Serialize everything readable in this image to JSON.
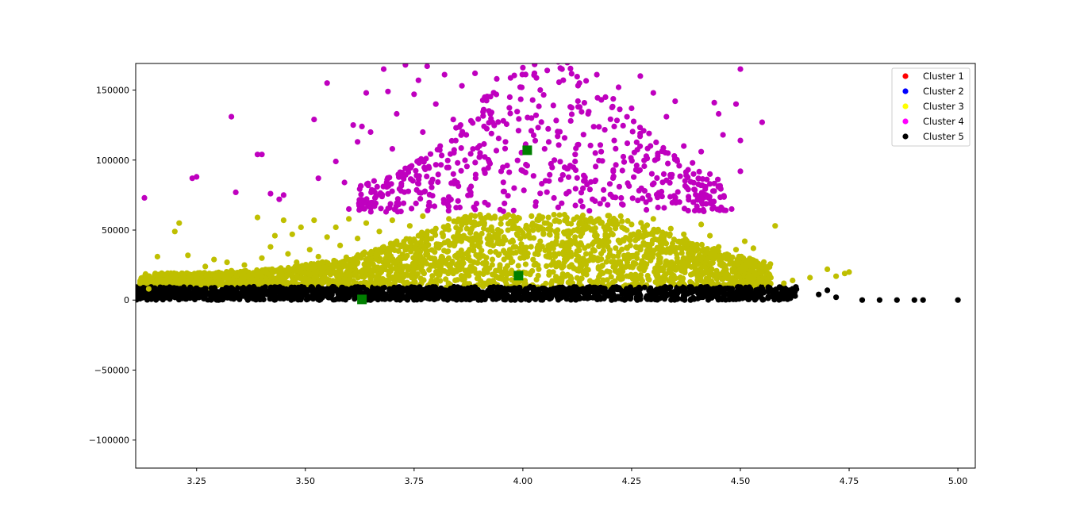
{
  "chart_data": {
    "type": "scatter",
    "title": "",
    "xlabel": "",
    "ylabel": "",
    "xlim": [
      3.11,
      5.04
    ],
    "ylim": [
      -120000,
      169000
    ],
    "x_ticks": [
      3.25,
      3.5,
      3.75,
      4.0,
      4.25,
      4.5,
      4.75,
      5.0
    ],
    "x_tick_labels": [
      "3.25",
      "3.50",
      "3.75",
      "4.00",
      "4.25",
      "4.50",
      "4.75",
      "5.00"
    ],
    "y_ticks": [
      150000,
      100000,
      50000,
      0,
      -50000,
      -100000
    ],
    "y_tick_labels": [
      "150000",
      "100000",
      "50000",
      "0",
      "−50000",
      "−100000"
    ],
    "legend_placement": "top-right",
    "grid": false,
    "series": [
      {
        "name": "Cluster 1",
        "legend_color": "#ff0000",
        "color": "#ff0000",
        "points": []
      },
      {
        "name": "Cluster 2",
        "legend_color": "#0000ff",
        "color": "#0000ff",
        "points": []
      },
      {
        "name": "Cluster 3",
        "legend_color": "#ffff00",
        "color": "#bfbf00",
        "points": [
          [
            3.12,
            12000
          ],
          [
            3.14,
            8000
          ],
          [
            3.16,
            31000
          ],
          [
            3.18,
            13000
          ],
          [
            3.2,
            49000
          ],
          [
            3.21,
            55000
          ],
          [
            3.22,
            14000
          ],
          [
            3.23,
            32000
          ],
          [
            3.25,
            18000
          ],
          [
            3.26,
            11000
          ],
          [
            3.27,
            24000
          ],
          [
            3.29,
            29000
          ],
          [
            3.3,
            16000
          ],
          [
            3.32,
            27000
          ],
          [
            3.33,
            21000
          ],
          [
            3.35,
            12000
          ],
          [
            3.36,
            25000
          ],
          [
            3.38,
            18000
          ],
          [
            3.39,
            59000
          ],
          [
            3.4,
            30000
          ],
          [
            3.41,
            14000
          ],
          [
            3.42,
            38000
          ],
          [
            3.43,
            46000
          ],
          [
            3.44,
            22000
          ],
          [
            3.45,
            57000
          ],
          [
            3.46,
            33000
          ],
          [
            3.47,
            47000
          ],
          [
            3.48,
            27000
          ],
          [
            3.49,
            52000
          ],
          [
            3.5,
            19000
          ],
          [
            3.51,
            36000
          ],
          [
            3.52,
            57000
          ],
          [
            3.53,
            31000
          ],
          [
            3.54,
            13000
          ],
          [
            3.55,
            45000
          ],
          [
            3.56,
            24000
          ],
          [
            3.57,
            52000
          ],
          [
            3.58,
            39000
          ],
          [
            3.59,
            15000
          ],
          [
            3.6,
            58000
          ],
          [
            3.61,
            27000
          ],
          [
            3.62,
            44000
          ],
          [
            3.63,
            20000
          ],
          [
            3.64,
            55000
          ],
          [
            3.65,
            33000
          ],
          [
            3.66,
            12000
          ],
          [
            3.67,
            49000
          ],
          [
            3.68,
            38000
          ],
          [
            3.69,
            25000
          ],
          [
            3.7,
            57000
          ],
          [
            3.71,
            42000
          ],
          [
            3.72,
            17000
          ],
          [
            3.73,
            30000
          ],
          [
            3.74,
            53000
          ],
          [
            3.75,
            22000
          ],
          [
            3.76,
            46000
          ],
          [
            3.77,
            60000
          ],
          [
            3.78,
            35000
          ],
          [
            3.79,
            14000
          ],
          [
            3.8,
            51000
          ],
          [
            3.81,
            28000
          ],
          [
            3.82,
            41000
          ],
          [
            3.83,
            58000
          ],
          [
            3.84,
            19000
          ],
          [
            3.85,
            47000
          ],
          [
            3.86,
            33000
          ],
          [
            3.87,
            55000
          ],
          [
            3.88,
            24000
          ],
          [
            3.89,
            60000
          ],
          [
            3.9,
            38000
          ],
          [
            3.91,
            12000
          ],
          [
            3.92,
            50000
          ],
          [
            3.93,
            29000
          ],
          [
            3.94,
            44000
          ],
          [
            3.95,
            58000
          ],
          [
            3.96,
            21000
          ],
          [
            3.97,
            36000
          ],
          [
            3.98,
            53000
          ],
          [
            3.99,
            15000
          ],
          [
            4.0,
            48000
          ],
          [
            4.01,
            31000
          ],
          [
            4.02,
            60000
          ],
          [
            4.03,
            26000
          ],
          [
            4.04,
            42000
          ],
          [
            4.05,
            55000
          ],
          [
            4.06,
            18000
          ],
          [
            4.07,
            37000
          ],
          [
            4.08,
            50000
          ],
          [
            4.09,
            23000
          ],
          [
            4.1,
            59000
          ],
          [
            4.11,
            34000
          ],
          [
            4.12,
            45000
          ],
          [
            4.13,
            13000
          ],
          [
            4.14,
            52000
          ],
          [
            4.15,
            28000
          ],
          [
            4.16,
            40000
          ],
          [
            4.17,
            57000
          ],
          [
            4.18,
            20000
          ],
          [
            4.19,
            47000
          ],
          [
            4.2,
            33000
          ],
          [
            4.21,
            56000
          ],
          [
            4.22,
            16000
          ],
          [
            4.23,
            43000
          ],
          [
            4.24,
            27000
          ],
          [
            4.25,
            54000
          ],
          [
            4.26,
            38000
          ],
          [
            4.27,
            22000
          ],
          [
            4.28,
            49000
          ],
          [
            4.29,
            31000
          ],
          [
            4.3,
            58000
          ],
          [
            4.31,
            18000
          ],
          [
            4.32,
            44000
          ],
          [
            4.33,
            26000
          ],
          [
            4.34,
            51000
          ],
          [
            4.35,
            35000
          ],
          [
            4.36,
            12000
          ],
          [
            4.37,
            47000
          ],
          [
            4.38,
            29000
          ],
          [
            4.39,
            40000
          ],
          [
            4.4,
            21000
          ],
          [
            4.41,
            54000
          ],
          [
            4.42,
            33000
          ],
          [
            4.43,
            46000
          ],
          [
            4.44,
            17000
          ],
          [
            4.45,
            38000
          ],
          [
            4.46,
            25000
          ],
          [
            4.47,
            30000
          ],
          [
            4.48,
            14000
          ],
          [
            4.49,
            36000
          ],
          [
            4.5,
            22000
          ],
          [
            4.51,
            42000
          ],
          [
            4.52,
            18000
          ],
          [
            4.53,
            37000
          ],
          [
            4.55,
            13000
          ],
          [
            4.57,
            16000
          ],
          [
            4.58,
            53000
          ],
          [
            4.6,
            12000
          ],
          [
            4.62,
            14000
          ],
          [
            4.66,
            16000
          ],
          [
            4.7,
            22000
          ],
          [
            4.72,
            17000
          ],
          [
            4.74,
            19000
          ],
          [
            4.75,
            20000
          ]
        ]
      },
      {
        "name": "Cluster 4",
        "legend_color": "#ff00ff",
        "color": "#bf00bf",
        "points": [
          [
            3.13,
            73000
          ],
          [
            3.24,
            87000
          ],
          [
            3.25,
            88000
          ],
          [
            3.33,
            131000
          ],
          [
            3.34,
            77000
          ],
          [
            3.39,
            104000
          ],
          [
            3.4,
            104000
          ],
          [
            3.42,
            76000
          ],
          [
            3.44,
            72000
          ],
          [
            3.45,
            75000
          ],
          [
            3.52,
            129000
          ],
          [
            3.53,
            87000
          ],
          [
            3.55,
            155000
          ],
          [
            3.57,
            99000
          ],
          [
            3.59,
            84000
          ],
          [
            3.6,
            65000
          ],
          [
            3.61,
            125000
          ],
          [
            3.62,
            113000
          ],
          [
            3.63,
            124000
          ],
          [
            3.64,
            148000
          ],
          [
            3.65,
            120000
          ],
          [
            3.66,
            73000
          ],
          [
            3.68,
            165000
          ],
          [
            3.69,
            149000
          ],
          [
            3.7,
            108000
          ],
          [
            3.71,
            133000
          ],
          [
            3.72,
            78000
          ],
          [
            3.73,
            168000
          ],
          [
            3.74,
            95000
          ],
          [
            3.75,
            147000
          ],
          [
            3.76,
            157000
          ],
          [
            3.77,
            120000
          ],
          [
            3.78,
            167000
          ],
          [
            3.79,
            84000
          ],
          [
            3.8,
            140000
          ],
          [
            3.81,
            110000
          ],
          [
            3.82,
            161000
          ],
          [
            3.83,
            71000
          ],
          [
            3.84,
            129000
          ],
          [
            3.85,
            98000
          ],
          [
            3.86,
            153000
          ],
          [
            3.87,
            118000
          ],
          [
            3.88,
            75000
          ],
          [
            3.89,
            162000
          ],
          [
            3.9,
            102000
          ],
          [
            3.91,
            136000
          ],
          [
            3.92,
            68000
          ],
          [
            3.93,
            127000
          ],
          [
            3.94,
            158000
          ],
          [
            3.95,
            92000
          ],
          [
            3.96,
            113000
          ],
          [
            3.97,
            145000
          ],
          [
            3.98,
            80000
          ],
          [
            3.99,
            121000
          ],
          [
            4.0,
            166000
          ],
          [
            4.01,
            96000
          ],
          [
            4.02,
            130000
          ],
          [
            4.03,
            70000
          ],
          [
            4.04,
            150000
          ],
          [
            4.05,
            108000
          ],
          [
            4.06,
            85000
          ],
          [
            4.07,
            139000
          ],
          [
            4.08,
            117000
          ],
          [
            4.09,
            165000
          ],
          [
            4.1,
            76000
          ],
          [
            4.11,
            128000
          ],
          [
            4.12,
            99000
          ],
          [
            4.13,
            155000
          ],
          [
            4.14,
            89000
          ],
          [
            4.15,
            133000
          ],
          [
            4.16,
            72000
          ],
          [
            4.17,
            161000
          ],
          [
            4.18,
            106000
          ],
          [
            4.19,
            145000
          ],
          [
            4.2,
            83000
          ],
          [
            4.21,
            124000
          ],
          [
            4.22,
            152000
          ],
          [
            4.23,
            68000
          ],
          [
            4.24,
            112000
          ],
          [
            4.25,
            137000
          ],
          [
            4.26,
            93000
          ],
          [
            4.27,
            160000
          ],
          [
            4.28,
            78000
          ],
          [
            4.29,
            119000
          ],
          [
            4.3,
            148000
          ],
          [
            4.31,
            101000
          ],
          [
            4.32,
            74000
          ],
          [
            4.33,
            131000
          ],
          [
            4.34,
            88000
          ],
          [
            4.35,
            142000
          ],
          [
            4.36,
            70000
          ],
          [
            4.37,
            110000
          ],
          [
            4.38,
            79000
          ],
          [
            4.39,
            98000
          ],
          [
            4.4,
            67000
          ],
          [
            4.41,
            106000
          ],
          [
            4.42,
            81000
          ],
          [
            4.43,
            90000
          ],
          [
            4.44,
            141000
          ],
          [
            4.45,
            133000
          ],
          [
            4.46,
            118000
          ],
          [
            4.48,
            65000
          ],
          [
            4.49,
            140000
          ],
          [
            4.5,
            114000
          ],
          [
            4.5,
            165000
          ],
          [
            4.5,
            92000
          ],
          [
            4.55,
            127000
          ]
        ]
      },
      {
        "name": "Cluster 5",
        "legend_color": "#000000",
        "color": "#000000",
        "points": [
          [
            3.12,
            1000
          ],
          [
            3.15,
            5000
          ],
          [
            3.2,
            2000
          ],
          [
            3.25,
            6000
          ],
          [
            3.3,
            0
          ],
          [
            3.35,
            4000
          ],
          [
            3.4,
            7000
          ],
          [
            3.45,
            1000
          ],
          [
            3.5,
            5000
          ],
          [
            3.55,
            8000
          ],
          [
            3.6,
            2000
          ],
          [
            3.65,
            6000
          ],
          [
            3.7,
            3000
          ],
          [
            3.75,
            9000
          ],
          [
            3.8,
            1000
          ],
          [
            3.85,
            7000
          ],
          [
            3.9,
            4000
          ],
          [
            3.95,
            9000
          ],
          [
            4.0,
            2000
          ],
          [
            4.05,
            8000
          ],
          [
            4.1,
            5000
          ],
          [
            4.15,
            9000
          ],
          [
            4.2,
            3000
          ],
          [
            4.25,
            7000
          ],
          [
            4.3,
            1000
          ],
          [
            4.35,
            6000
          ],
          [
            4.4,
            8000
          ],
          [
            4.45,
            2000
          ],
          [
            4.5,
            5000
          ],
          [
            4.55,
            1000
          ],
          [
            4.6,
            7000
          ],
          [
            4.62,
            8000
          ],
          [
            4.68,
            4000
          ],
          [
            4.7,
            7000
          ],
          [
            4.72,
            2000
          ],
          [
            4.78,
            0
          ],
          [
            4.82,
            0
          ],
          [
            4.86,
            0
          ],
          [
            4.9,
            0
          ],
          [
            4.92,
            0
          ],
          [
            5.0,
            0
          ]
        ]
      }
    ],
    "centroids": {
      "color": "#007f00",
      "marker": "square",
      "points": [
        [
          3.63,
          500
        ],
        [
          3.99,
          17500
        ],
        [
          4.01,
          107000
        ]
      ]
    }
  }
}
